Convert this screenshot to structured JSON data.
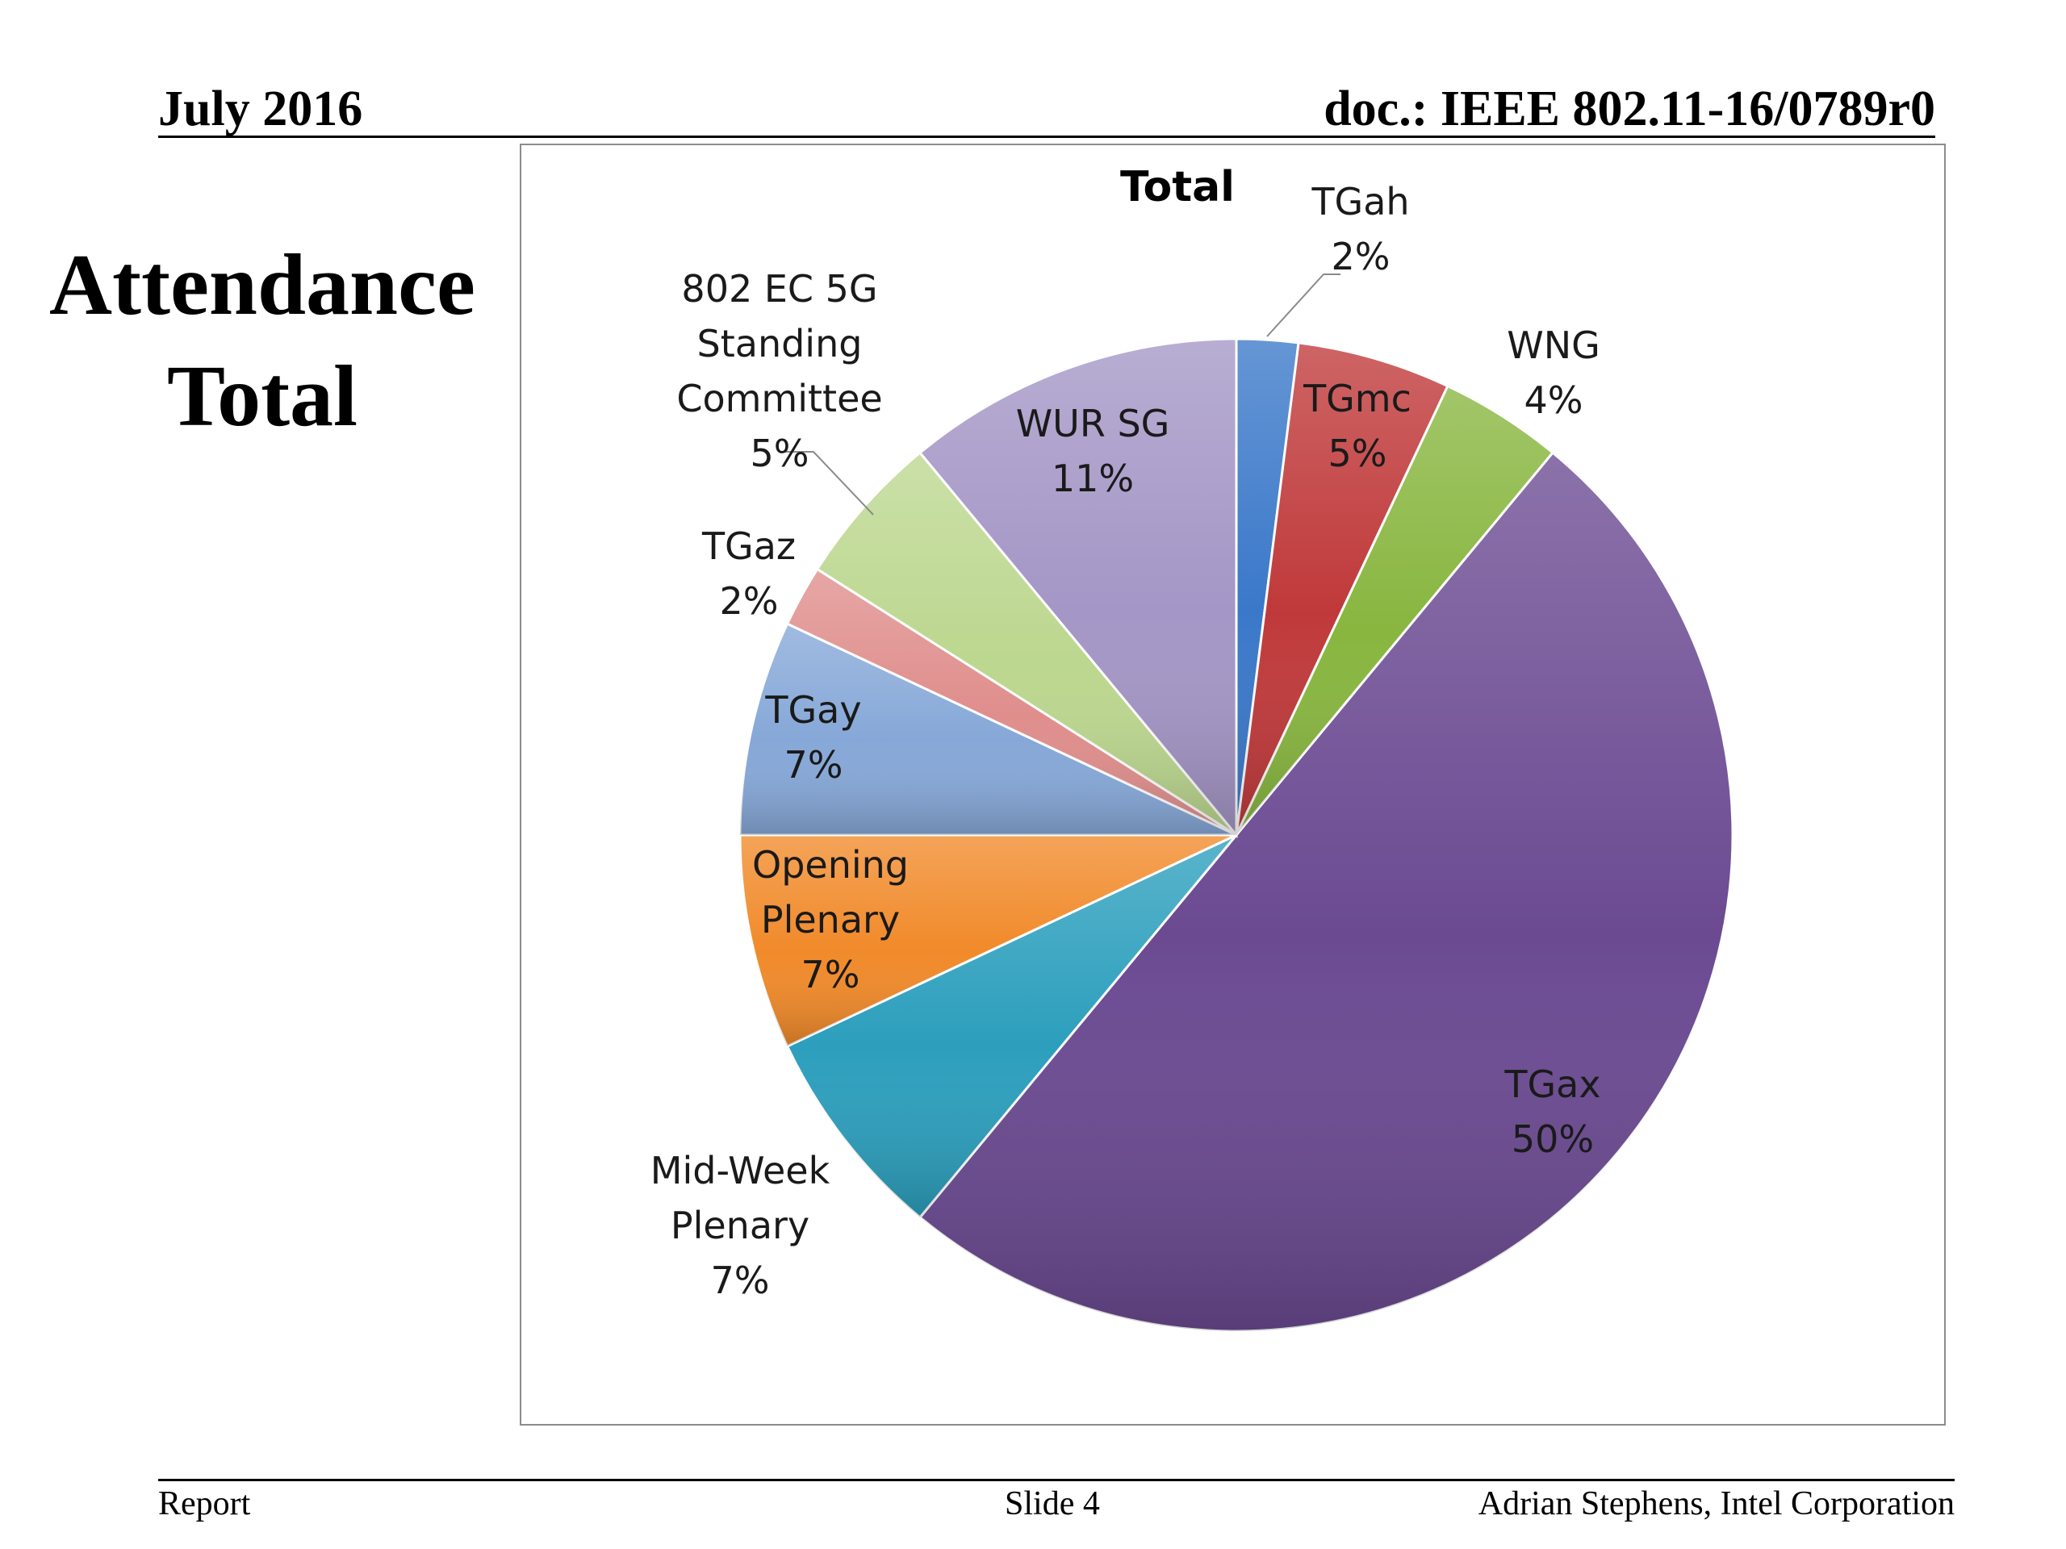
{
  "header": {
    "date": "July 2016",
    "doc_id": "doc.: IEEE 802.11-16/0789r0"
  },
  "slide_title": {
    "line1": "Attendance",
    "line2": "Total"
  },
  "footer": {
    "left": "Report",
    "center": "Slide 4",
    "right": "Adrian Stephens, Intel Corporation"
  },
  "chart_data": {
    "type": "pie",
    "title": "Total",
    "slices": [
      {
        "name": "TGah",
        "value": 2,
        "label": "2%",
        "color": "#3a78c9"
      },
      {
        "name": "TGmc",
        "value": 5,
        "label": "5%",
        "color": "#c0393a"
      },
      {
        "name": "WNG",
        "value": 4,
        "label": "4%",
        "color": "#88b63f"
      },
      {
        "name": "TGax",
        "value": 50,
        "label": "50%",
        "color": "#6b4a92"
      },
      {
        "name": "Mid-Week Plenary",
        "value": 7,
        "label": "7%",
        "color": "#2c9fbd"
      },
      {
        "name": "Opening Plenary",
        "value": 7,
        "label": "7%",
        "color": "#f18a2a"
      },
      {
        "name": "TGay",
        "value": 7,
        "label": "7%",
        "color": "#86a8d8"
      },
      {
        "name": "TGaz",
        "value": 2,
        "label": "2%",
        "color": "#df8e8c"
      },
      {
        "name": "802 EC 5G Standing Committee",
        "value": 5,
        "label": "5%",
        "color": "#bcd78f"
      },
      {
        "name": "WUR SG",
        "value": 11,
        "label": "11%",
        "color": "#a496c6"
      }
    ]
  }
}
